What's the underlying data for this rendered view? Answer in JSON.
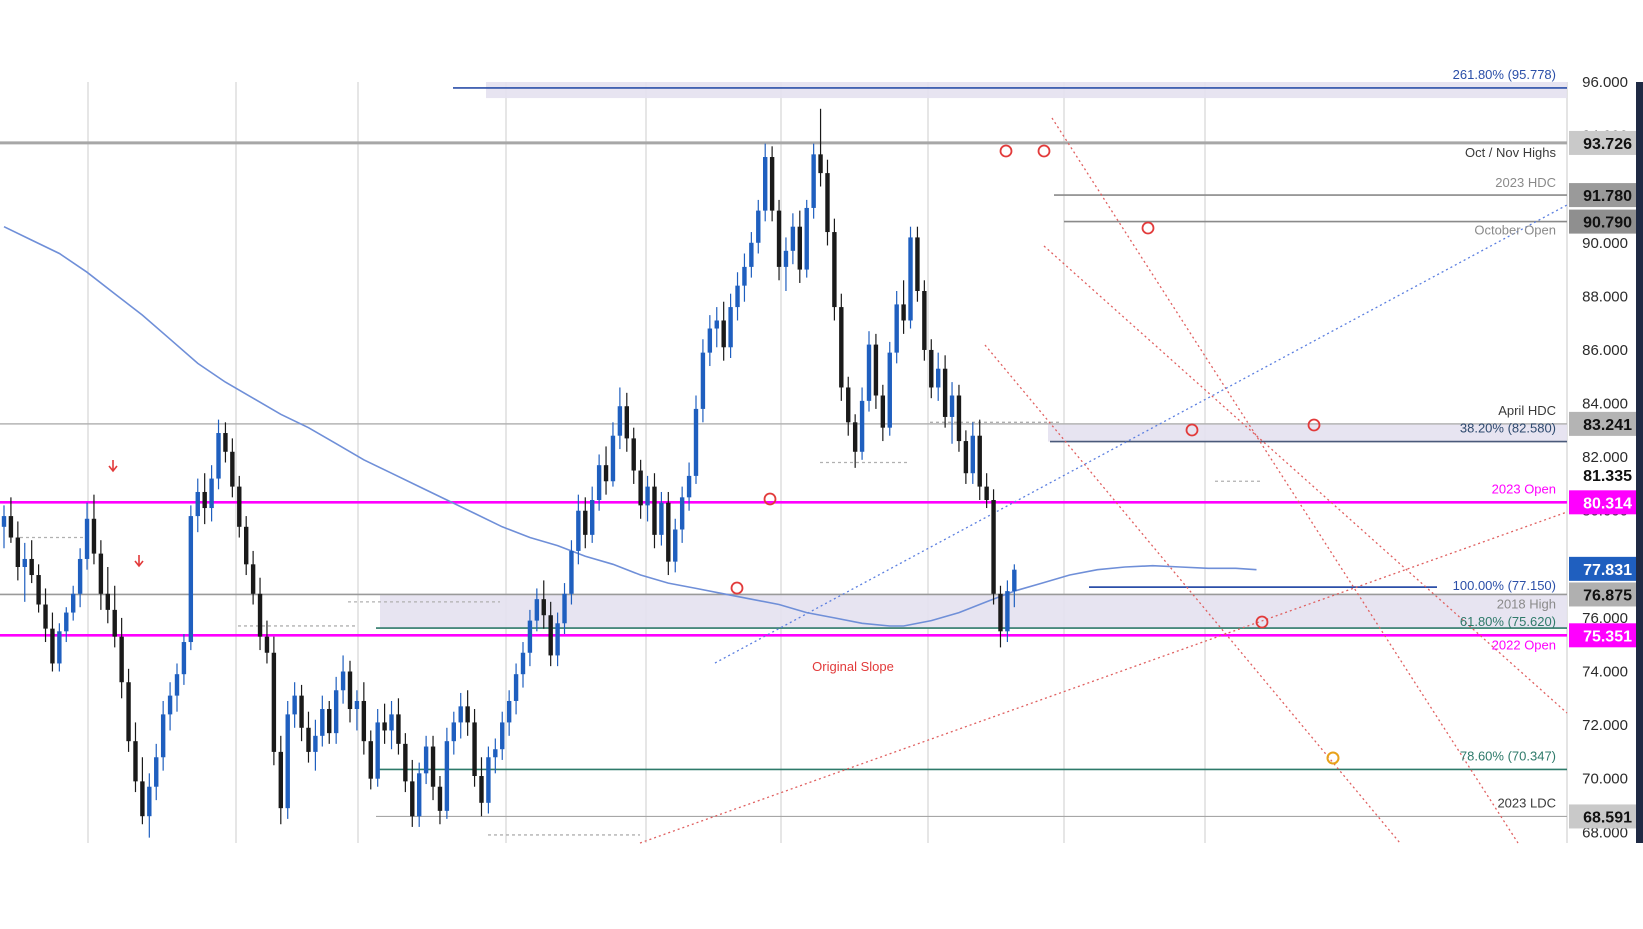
{
  "chart_data": {
    "type": "candlestick",
    "title": "",
    "xlabel": "",
    "ylabel": "",
    "ylim": [
      67.6,
      96.0
    ],
    "y_ticks": [
      "68.000",
      "70.000",
      "72.000",
      "74.000",
      "76.000",
      "78.000",
      "80.000",
      "82.000",
      "84.000",
      "86.000",
      "88.000",
      "90.000",
      "92.000",
      "94.000",
      "96.000"
    ],
    "grid": true,
    "colors": {
      "up": "#1f5fbf",
      "down": "#1a1a1a",
      "moving_average": "#6f8fd8",
      "magenta": "#ff00ff",
      "guide_red": "#e06060",
      "marker_red": "#e23a3a",
      "marker_orange": "#e8a21a"
    },
    "candles_ohlc": [
      [
        79.4,
        80.2,
        78.6,
        79.8
      ],
      [
        79.8,
        80.5,
        78.8,
        79.0
      ],
      [
        79.0,
        79.6,
        77.4,
        77.9
      ],
      [
        77.9,
        78.8,
        76.6,
        78.2
      ],
      [
        78.2,
        78.9,
        77.3,
        77.6
      ],
      [
        77.6,
        78.0,
        76.2,
        76.5
      ],
      [
        76.5,
        77.1,
        75.1,
        75.6
      ],
      [
        75.6,
        76.2,
        74.0,
        74.3
      ],
      [
        74.3,
        75.8,
        74.0,
        75.5
      ],
      [
        75.5,
        76.4,
        75.1,
        76.2
      ],
      [
        76.2,
        77.2,
        75.9,
        76.9
      ],
      [
        76.9,
        78.6,
        76.4,
        78.2
      ],
      [
        78.2,
        80.3,
        77.8,
        79.7
      ],
      [
        79.7,
        80.6,
        78.0,
        78.4
      ],
      [
        78.4,
        78.9,
        76.3,
        76.9
      ],
      [
        76.9,
        77.9,
        75.8,
        76.3
      ],
      [
        76.3,
        77.2,
        74.9,
        75.3
      ],
      [
        75.3,
        76.0,
        73.0,
        73.6
      ],
      [
        73.6,
        74.1,
        71.0,
        71.4
      ],
      [
        71.4,
        72.1,
        69.5,
        69.9
      ],
      [
        69.9,
        70.8,
        68.3,
        68.6
      ],
      [
        68.6,
        70.2,
        67.8,
        69.7
      ],
      [
        69.7,
        71.3,
        69.2,
        70.8
      ],
      [
        70.8,
        72.9,
        70.3,
        72.4
      ],
      [
        72.4,
        73.6,
        71.8,
        73.1
      ],
      [
        73.1,
        74.3,
        72.5,
        73.9
      ],
      [
        73.9,
        75.4,
        73.5,
        75.1
      ],
      [
        75.1,
        80.2,
        74.8,
        79.8
      ],
      [
        79.8,
        81.2,
        79.2,
        80.7
      ],
      [
        80.7,
        81.4,
        79.5,
        80.1
      ],
      [
        80.1,
        81.7,
        79.6,
        81.2
      ],
      [
        81.2,
        83.4,
        80.8,
        82.9
      ],
      [
        82.9,
        83.3,
        81.8,
        82.2
      ],
      [
        82.2,
        82.7,
        80.5,
        80.9
      ],
      [
        80.9,
        81.3,
        79.0,
        79.4
      ],
      [
        79.4,
        79.8,
        77.6,
        78.0
      ],
      [
        78.0,
        78.5,
        76.5,
        76.9
      ],
      [
        76.9,
        77.5,
        74.8,
        75.3
      ],
      [
        75.3,
        75.9,
        74.3,
        74.7
      ],
      [
        74.7,
        75.3,
        70.5,
        71.0
      ],
      [
        71.0,
        71.6,
        68.3,
        68.9
      ],
      [
        68.9,
        72.9,
        68.5,
        72.4
      ],
      [
        72.4,
        73.6,
        71.9,
        73.1
      ],
      [
        73.1,
        73.5,
        71.4,
        71.9
      ],
      [
        71.9,
        72.5,
        70.6,
        71.0
      ],
      [
        71.0,
        72.2,
        70.3,
        71.6
      ],
      [
        71.6,
        73.1,
        71.2,
        72.6
      ],
      [
        72.6,
        72.9,
        71.3,
        71.7
      ],
      [
        71.7,
        73.8,
        71.3,
        73.3
      ],
      [
        73.3,
        74.6,
        72.8,
        74.0
      ],
      [
        74.0,
        74.4,
        72.1,
        72.6
      ],
      [
        72.6,
        73.3,
        71.8,
        72.9
      ],
      [
        72.9,
        73.6,
        70.9,
        71.4
      ],
      [
        71.4,
        71.8,
        69.6,
        70.0
      ],
      [
        70.0,
        72.6,
        69.7,
        72.1
      ],
      [
        72.1,
        72.8,
        71.3,
        71.8
      ],
      [
        71.8,
        72.9,
        71.1,
        72.4
      ],
      [
        72.4,
        73.0,
        70.9,
        71.3
      ],
      [
        71.3,
        71.7,
        69.5,
        69.9
      ],
      [
        69.9,
        70.7,
        68.2,
        68.6
      ],
      [
        68.6,
        70.6,
        68.2,
        70.2
      ],
      [
        70.2,
        71.6,
        69.8,
        71.2
      ],
      [
        71.2,
        71.6,
        69.2,
        69.7
      ],
      [
        69.7,
        70.1,
        68.3,
        68.8
      ],
      [
        68.8,
        71.9,
        68.5,
        71.4
      ],
      [
        71.4,
        72.5,
        70.9,
        72.1
      ],
      [
        72.1,
        73.2,
        71.5,
        72.7
      ],
      [
        72.7,
        73.3,
        71.6,
        72.1
      ],
      [
        72.1,
        72.6,
        69.7,
        70.1
      ],
      [
        70.1,
        70.8,
        68.6,
        69.1
      ],
      [
        69.1,
        71.2,
        68.7,
        70.8
      ],
      [
        70.8,
        71.5,
        70.2,
        71.1
      ],
      [
        71.1,
        72.5,
        70.7,
        72.1
      ],
      [
        72.1,
        73.3,
        71.6,
        72.9
      ],
      [
        72.9,
        74.3,
        72.4,
        73.9
      ],
      [
        73.9,
        75.1,
        73.4,
        74.7
      ],
      [
        74.7,
        76.3,
        74.2,
        75.9
      ],
      [
        75.9,
        77.1,
        75.5,
        76.7
      ],
      [
        76.7,
        77.4,
        75.6,
        76.1
      ],
      [
        76.1,
        76.6,
        74.2,
        74.6
      ],
      [
        74.6,
        76.2,
        74.2,
        75.8
      ],
      [
        75.8,
        77.3,
        75.4,
        76.9
      ],
      [
        76.9,
        78.9,
        76.5,
        78.5
      ],
      [
        78.5,
        80.6,
        78.0,
        80.0
      ],
      [
        80.0,
        80.5,
        78.6,
        79.1
      ],
      [
        79.1,
        80.9,
        78.8,
        80.4
      ],
      [
        80.4,
        82.1,
        80.0,
        81.7
      ],
      [
        81.7,
        82.4,
        80.6,
        81.1
      ],
      [
        81.1,
        83.3,
        80.9,
        82.8
      ],
      [
        82.8,
        84.6,
        82.3,
        83.9
      ],
      [
        83.9,
        84.4,
        82.2,
        82.7
      ],
      [
        82.7,
        83.1,
        81.0,
        81.5
      ],
      [
        81.5,
        81.9,
        79.7,
        80.2
      ],
      [
        80.2,
        81.3,
        79.6,
        80.9
      ],
      [
        80.9,
        81.4,
        78.6,
        79.1
      ],
      [
        79.1,
        80.7,
        78.7,
        80.3
      ],
      [
        80.3,
        80.7,
        77.6,
        78.1
      ],
      [
        78.1,
        79.7,
        77.7,
        79.3
      ],
      [
        79.3,
        80.9,
        78.8,
        80.5
      ],
      [
        80.5,
        81.8,
        80.0,
        81.3
      ],
      [
        81.3,
        84.3,
        81.0,
        83.8
      ],
      [
        83.8,
        86.4,
        83.3,
        85.9
      ],
      [
        85.9,
        87.3,
        85.4,
        86.8
      ],
      [
        86.8,
        87.6,
        86.1,
        87.1
      ],
      [
        87.1,
        87.8,
        85.6,
        86.1
      ],
      [
        86.1,
        88.1,
        85.7,
        87.6
      ],
      [
        87.6,
        88.9,
        87.1,
        88.4
      ],
      [
        88.4,
        89.6,
        87.8,
        89.1
      ],
      [
        89.1,
        90.4,
        88.7,
        90.0
      ],
      [
        90.0,
        91.6,
        89.6,
        91.2
      ],
      [
        91.2,
        93.7,
        90.8,
        93.2
      ],
      [
        93.2,
        93.6,
        90.8,
        91.2
      ],
      [
        91.2,
        91.6,
        88.6,
        89.1
      ],
      [
        89.1,
        90.2,
        88.2,
        89.7
      ],
      [
        89.7,
        91.1,
        89.2,
        90.6
      ],
      [
        90.6,
        91.2,
        88.5,
        89.0
      ],
      [
        89.0,
        91.6,
        88.7,
        91.3
      ],
      [
        91.3,
        93.7,
        90.9,
        93.3
      ],
      [
        93.3,
        95.0,
        92.1,
        92.6
      ],
      [
        92.6,
        93.1,
        89.9,
        90.4
      ],
      [
        90.4,
        90.9,
        87.1,
        87.6
      ],
      [
        87.6,
        88.1,
        84.1,
        84.6
      ],
      [
        84.6,
        85.0,
        82.8,
        83.3
      ],
      [
        83.3,
        83.6,
        81.6,
        82.2
      ],
      [
        82.2,
        84.6,
        81.9,
        84.1
      ],
      [
        84.1,
        86.7,
        83.7,
        86.2
      ],
      [
        86.2,
        86.6,
        83.8,
        84.3
      ],
      [
        84.3,
        84.7,
        82.6,
        83.1
      ],
      [
        83.1,
        86.3,
        82.8,
        85.9
      ],
      [
        85.9,
        88.2,
        85.5,
        87.7
      ],
      [
        87.7,
        88.6,
        86.6,
        87.1
      ],
      [
        87.1,
        90.6,
        86.8,
        90.2
      ],
      [
        90.2,
        90.6,
        87.8,
        88.2
      ],
      [
        88.2,
        88.6,
        85.6,
        86.0
      ],
      [
        86.0,
        86.4,
        84.2,
        84.6
      ],
      [
        84.6,
        85.9,
        84.1,
        85.3
      ],
      [
        85.3,
        85.8,
        83.1,
        83.5
      ],
      [
        83.5,
        84.8,
        82.5,
        84.3
      ],
      [
        84.3,
        84.7,
        82.2,
        82.6
      ],
      [
        82.6,
        83.0,
        81.0,
        81.4
      ],
      [
        81.4,
        83.3,
        81.0,
        82.8
      ],
      [
        82.8,
        83.4,
        80.4,
        80.9
      ],
      [
        80.9,
        81.4,
        80.1,
        80.4
      ],
      [
        80.4,
        80.8,
        76.5,
        76.9
      ],
      [
        76.9,
        77.2,
        74.9,
        75.5
      ],
      [
        75.5,
        77.4,
        75.1,
        77.0
      ],
      [
        77.0,
        78.0,
        76.4,
        77.8
      ]
    ],
    "moving_average": [
      [
        0,
        90.6
      ],
      [
        4,
        90.1
      ],
      [
        8,
        89.6
      ],
      [
        12,
        88.9
      ],
      [
        16,
        88.1
      ],
      [
        20,
        87.3
      ],
      [
        24,
        86.4
      ],
      [
        28,
        85.5
      ],
      [
        32,
        84.8
      ],
      [
        36,
        84.2
      ],
      [
        40,
        83.6
      ],
      [
        44,
        83.1
      ],
      [
        48,
        82.5
      ],
      [
        52,
        81.9
      ],
      [
        56,
        81.4
      ],
      [
        60,
        80.9
      ],
      [
        64,
        80.4
      ],
      [
        68,
        79.9
      ],
      [
        72,
        79.4
      ],
      [
        76,
        79.0
      ],
      [
        80,
        78.7
      ],
      [
        84,
        78.3
      ],
      [
        88,
        78.0
      ],
      [
        92,
        77.6
      ],
      [
        96,
        77.3
      ],
      [
        100,
        77.1
      ],
      [
        104,
        76.9
      ],
      [
        108,
        76.7
      ],
      [
        112,
        76.5
      ],
      [
        116,
        76.2
      ],
      [
        120,
        76.0
      ],
      [
        124,
        75.8
      ],
      [
        128,
        75.7
      ],
      [
        130,
        75.7
      ],
      [
        134,
        75.9
      ],
      [
        138,
        76.2
      ],
      [
        142,
        76.6
      ],
      [
        146,
        77.0
      ],
      [
        150,
        77.3
      ],
      [
        154,
        77.6
      ],
      [
        158,
        77.8
      ],
      [
        162,
        77.9
      ],
      [
        166,
        77.95
      ],
      [
        170,
        77.9
      ],
      [
        174,
        77.85
      ],
      [
        178,
        77.85
      ],
      [
        181,
        77.8
      ]
    ],
    "price_levels": [
      {
        "label": "261.80% (95.778)",
        "value": 95.778,
        "color": "#2b4fa8"
      },
      {
        "label": "Oct / Nov Highs",
        "value": 93.726,
        "color": "#9a9a9a",
        "tag": "93.726"
      },
      {
        "label": "2023 HDC",
        "value": 91.78,
        "color": "#8a8a8a",
        "tag": "91.780"
      },
      {
        "label": "October Open",
        "value": 90.79,
        "color": "#8a8a8a",
        "tag": "90.790"
      },
      {
        "label": "April HDC",
        "value": 83.241,
        "color": "#9a9a9a",
        "tag": "83.241"
      },
      {
        "label": "38.20% (82.580)",
        "value": 82.58,
        "color": "#4a5a7a"
      },
      {
        "label": "",
        "value": 81.335,
        "tag": "81.335"
      },
      {
        "label": "2023 Open",
        "value": 80.314,
        "color": "#ff00ff",
        "tag": "80.314"
      },
      {
        "label": "",
        "value": 77.831,
        "tag": "77.831"
      },
      {
        "label": "100.00% (77.150)",
        "value": 77.15,
        "color": "#2b4fa8"
      },
      {
        "label": "2018 High",
        "value": 76.875,
        "color": "#8a8a8a",
        "tag": "76.875"
      },
      {
        "label": "61.80% (75.620)",
        "value": 75.62,
        "color": "#2e7a6a"
      },
      {
        "label": "2022 Open",
        "value": 75.351,
        "color": "#ff00ff",
        "tag": "75.351"
      },
      {
        "label": "78.60% (70.347)",
        "value": 70.347,
        "color": "#2e7a6a"
      },
      {
        "label": "2023 LDC",
        "value": 68.591,
        "color": "#9a9a9a",
        "tag": "68.591"
      }
    ],
    "annotations": [
      "Original Slope"
    ]
  }
}
